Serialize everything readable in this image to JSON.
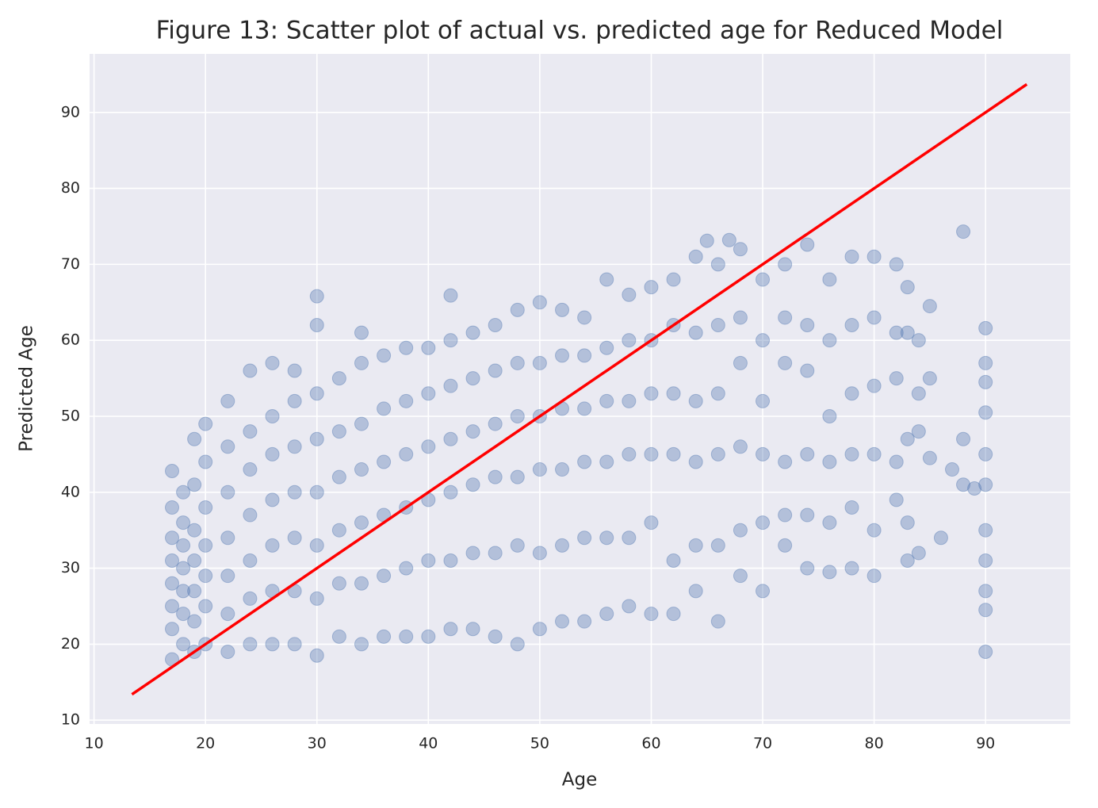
{
  "chart_data": {
    "type": "scatter",
    "title": "Figure 13: Scatter plot of actual vs. predicted age for Reduced Model",
    "xlabel": "Age",
    "ylabel": "Predicted Age",
    "color": "#4c72b0",
    "grid": true,
    "xlim": [
      9.6,
      97.6
    ],
    "ylim": [
      9.5,
      97.7
    ],
    "xticks": [
      10,
      20,
      30,
      40,
      50,
      60,
      70,
      80,
      90
    ],
    "yticks": [
      10,
      20,
      30,
      40,
      50,
      60,
      70,
      80,
      90
    ],
    "x": [
      17,
      17,
      17,
      17,
      17,
      17,
      17,
      17,
      18,
      18,
      18,
      18,
      18,
      18,
      18,
      19,
      19,
      19,
      19,
      19,
      19,
      19,
      20,
      20,
      20,
      20,
      20,
      20,
      20,
      22,
      22,
      22,
      22,
      22,
      22,
      22,
      24,
      24,
      24,
      24,
      24,
      24,
      24,
      26,
      26,
      26,
      26,
      26,
      26,
      26,
      28,
      28,
      28,
      28,
      28,
      28,
      28,
      30,
      30,
      30,
      30,
      30,
      30,
      30,
      30,
      32,
      32,
      32,
      32,
      32,
      32,
      34,
      34,
      34,
      34,
      34,
      34,
      34,
      36,
      36,
      36,
      36,
      36,
      36,
      38,
      38,
      38,
      38,
      38,
      38,
      40,
      40,
      40,
      40,
      40,
      40,
      42,
      42,
      42,
      42,
      42,
      42,
      42,
      44,
      44,
      44,
      44,
      44,
      44,
      46,
      46,
      46,
      46,
      46,
      46,
      48,
      48,
      48,
      48,
      48,
      48,
      50,
      50,
      50,
      50,
      50,
      50,
      52,
      52,
      52,
      52,
      52,
      52,
      54,
      54,
      54,
      54,
      54,
      54,
      56,
      56,
      56,
      56,
      56,
      56,
      58,
      58,
      58,
      58,
      58,
      58,
      60,
      60,
      60,
      60,
      60,
      60,
      62,
      62,
      62,
      62,
      62,
      62,
      64,
      64,
      64,
      64,
      64,
      64,
      65,
      66,
      66,
      66,
      66,
      66,
      66,
      67,
      68,
      68,
      68,
      68,
      68,
      68,
      70,
      70,
      70,
      70,
      70,
      70,
      72,
      72,
      72,
      72,
      72,
      72,
      74,
      74,
      74,
      74,
      74,
      74,
      76,
      76,
      76,
      76,
      76,
      76,
      78,
      78,
      78,
      78,
      78,
      78,
      80,
      80,
      80,
      80,
      80,
      80,
      82,
      82,
      82,
      82,
      82,
      83,
      83,
      83,
      83,
      83,
      84,
      84,
      84,
      84,
      85,
      85,
      85,
      86,
      87,
      88,
      88,
      88,
      89,
      90,
      90,
      90,
      90,
      90,
      90,
      90,
      90,
      90,
      90,
      90
    ],
    "y": [
      22,
      25,
      28,
      31,
      34,
      38,
      42.8,
      18,
      20,
      24,
      27,
      30,
      33,
      36,
      40,
      19,
      23,
      27,
      31,
      35,
      41,
      47,
      20,
      25,
      29,
      33,
      38,
      44,
      49,
      19,
      24,
      29,
      34,
      40,
      46,
      52,
      20,
      26,
      31,
      37,
      43,
      48,
      56,
      20,
      27,
      33,
      39,
      45,
      50,
      57,
      20,
      27,
      34,
      40,
      46,
      52,
      56,
      18.5,
      26,
      33,
      40,
      47,
      53,
      62,
      65.8,
      21,
      28,
      35,
      42,
      48,
      55,
      20,
      28,
      36,
      43,
      49,
      57,
      61,
      21,
      29,
      37,
      44,
      51,
      58,
      21,
      30,
      38,
      45,
      52,
      59,
      21,
      31,
      39,
      46,
      53,
      59,
      22,
      31,
      40,
      47,
      54,
      60,
      65.9,
      22,
      32,
      41,
      48,
      55,
      61,
      21,
      32,
      42,
      49,
      56,
      62,
      20,
      33,
      42,
      50,
      57,
      64,
      22,
      32,
      43,
      50,
      57,
      65,
      23,
      33,
      43,
      51,
      58,
      64,
      23,
      34,
      44,
      51,
      58,
      63,
      24,
      34,
      44,
      52,
      59,
      68,
      25,
      34,
      45,
      52,
      60,
      66,
      24,
      36,
      45,
      53,
      60,
      67,
      24,
      31,
      45,
      53,
      62,
      68,
      27,
      33,
      44,
      52,
      61,
      71,
      73.1,
      23,
      33,
      45,
      53,
      62,
      70,
      73.2,
      29,
      35,
      46,
      57,
      63,
      72,
      27,
      36,
      45,
      52,
      60,
      68,
      33,
      37,
      44,
      57,
      63,
      70,
      30,
      37,
      45,
      56,
      62,
      72.6,
      29.5,
      36,
      44,
      50,
      60,
      68,
      30,
      38,
      45,
      53,
      62,
      71,
      29,
      35,
      45,
      54,
      63,
      71,
      39,
      44,
      55,
      61,
      70,
      31,
      36,
      47,
      61,
      67,
      32,
      48,
      53,
      60,
      44.5,
      55,
      64.5,
      34,
      43,
      41,
      47,
      74.3,
      40.5,
      19,
      24.5,
      27,
      31,
      35,
      41,
      45,
      50.5,
      54.5,
      57,
      61.6
    ],
    "reference_line": {
      "x": [
        13.4,
        93.7
      ],
      "y": [
        13.4,
        93.7
      ],
      "color": "#ff0000"
    }
  }
}
